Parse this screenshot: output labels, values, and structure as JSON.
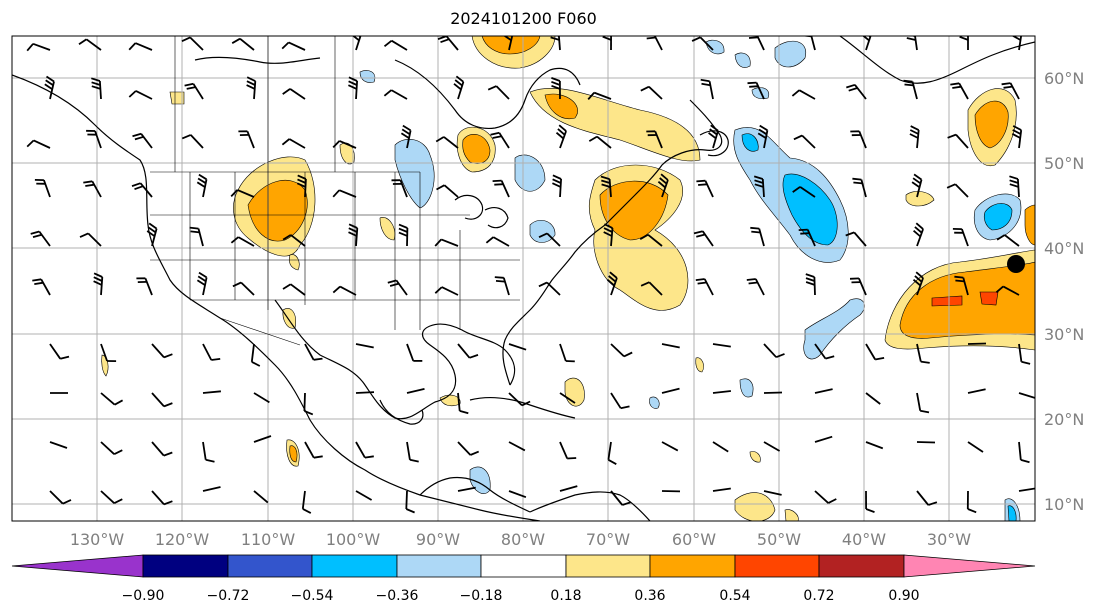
{
  "title": "2024101200 F060",
  "map": {
    "latitude_labels": [
      "60°N",
      "50°N",
      "40°N",
      "30°N",
      "20°N",
      "10°N"
    ],
    "longitude_labels": [
      "130°W",
      "120°W",
      "110°W",
      "100°W",
      "90°W",
      "80°W",
      "70°W",
      "60°W",
      "50°W",
      "40°W",
      "30°W"
    ],
    "anomaly_colors": {
      "light_yellow": "#fde68a",
      "orange": "#ffa500",
      "red_orange": "#ff4500",
      "light_blue": "#add8f6",
      "sky_blue": "#00bfff"
    },
    "marker": "filled-circle"
  },
  "colorbar": {
    "ticks": [
      "−0.90",
      "−0.72",
      "−0.54",
      "−0.36",
      "−0.18",
      "0.18",
      "0.36",
      "0.54",
      "0.72",
      "0.90"
    ],
    "colors": [
      "#9933cc",
      "#000080",
      "#3355cc",
      "#00bfff",
      "#add8f6",
      "#ffffff",
      "#fde68a",
      "#ffa500",
      "#ff4500",
      "#b22222",
      "#ff85b3"
    ]
  }
}
